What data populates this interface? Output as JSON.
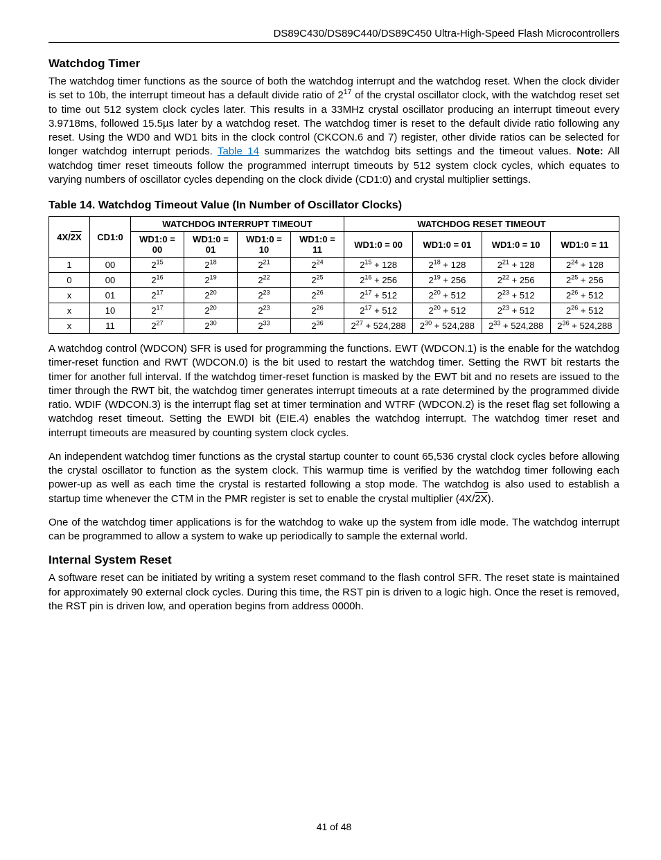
{
  "header": {
    "title": "DS89C430/DS89C440/DS89C450 Ultra-High-Speed Flash Microcontrollers"
  },
  "section1": {
    "title": "Watchdog Timer",
    "para1_pre": "The watchdog timer functions as the source of both the watchdog interrupt and the watchdog reset. When the clock divider is set to 10b, the interrupt timeout has a default divide ratio of 2",
    "para1_sup": "17",
    "para1_mid": " of the crystal oscillator clock, with the watchdog reset set to time out 512 system clock cycles later. This results in a 33MHz crystal oscillator producing an interrupt timeout every 3.9718ms, followed 15.5µs later by a watchdog reset. The watchdog timer is reset to the default divide ratio following any reset. Using the WD0 and WD1 bits in the clock control (CKCON.6 and 7) register, other divide ratios can be selected for longer watchdog interrupt periods. ",
    "para1_link": "Table 14",
    "para1_post1": " summarizes the watchdog bits settings and the timeout values. ",
    "para1_note": "Note:",
    "para1_post2": " All watchdog timer reset timeouts follow the programmed interrupt timeouts by 512 system clock cycles, which equates to varying numbers of oscillator cycles depending on the clock divide (CD1:0) and crystal multiplier settings."
  },
  "table": {
    "caption": "Table 14. Watchdog Timeout Value (In Number of Oscillator Clocks)",
    "header_group_int": "WATCHDOG INTERRUPT TIMEOUT",
    "header_group_rst": "WATCHDOG RESET TIMEOUT",
    "col_4x2x_pre": "4X/",
    "col_4x2x_over": "2X",
    "col_cd": "CD1:0",
    "cols_int": [
      "WD1:0 = 00",
      "WD1:0 = 01",
      "WD1:0 = 10",
      "WD1:0 = 11"
    ],
    "cols_rst": [
      "WD1:0 = 00",
      "WD1:0 = 01",
      "WD1:0 = 10",
      "WD1:0 = 11"
    ],
    "rows": [
      {
        "c0": "1",
        "c1": "00",
        "int_exp": [
          "15",
          "18",
          "21",
          "24"
        ],
        "rst_exp": [
          "15",
          "18",
          "21",
          "24"
        ],
        "rst_add": "128"
      },
      {
        "c0": "0",
        "c1": "00",
        "int_exp": [
          "16",
          "19",
          "22",
          "25"
        ],
        "rst_exp": [
          "16",
          "19",
          "22",
          "25"
        ],
        "rst_add": "256"
      },
      {
        "c0": "x",
        "c1": "01",
        "int_exp": [
          "17",
          "20",
          "23",
          "26"
        ],
        "rst_exp": [
          "17",
          "20",
          "23",
          "26"
        ],
        "rst_add": "512"
      },
      {
        "c0": "x",
        "c1": "10",
        "int_exp": [
          "17",
          "20",
          "23",
          "26"
        ],
        "rst_exp": [
          "17",
          "20",
          "23",
          "26"
        ],
        "rst_add": "512"
      },
      {
        "c0": "x",
        "c1": "11",
        "int_exp": [
          "27",
          "30",
          "33",
          "36"
        ],
        "rst_exp": [
          "27",
          "30",
          "33",
          "36"
        ],
        "rst_add": "524,288"
      }
    ]
  },
  "section1b": {
    "para2": "A watchdog control (WDCON) SFR is used for programming the functions. EWT (WDCON.1) is the enable for the watchdog timer-reset function and RWT (WDCON.0) is the bit used to restart the watchdog timer. Setting the RWT bit restarts the timer for another full interval. If the watchdog timer-reset function is masked by the EWT bit and no resets are issued to the timer through the RWT bit, the watchdog timer generates interrupt timeouts at a rate determined by the programmed divide ratio. WDIF (WDCON.3) is the interrupt flag set at timer termination and WTRF (WDCON.2) is the reset flag set following a watchdog reset timeout. Setting the EWDI bit (EIE.4) enables the watchdog interrupt. The watchdog timer reset and interrupt timeouts are measured by counting system clock cycles.",
    "para3_pre": "An independent watchdog timer functions as the crystal startup counter to count 65,536 crystal clock cycles before allowing the crystal oscillator to function as the system clock. This warmup time is verified by the watchdog timer following each power-up as well as each time the crystal is restarted following a stop mode. The watchdog is also used to establish a startup time whenever the CTM in the PMR register is set to enable the crystal multiplier (4X/",
    "para3_over": "2X",
    "para3_post": ").",
    "para4": "One of the watchdog timer applications is for the watchdog to wake up the system from idle mode. The watchdog interrupt can be programmed to allow a system to wake up periodically to sample the external world."
  },
  "section2": {
    "title": "Internal System Reset",
    "para1": "A software reset can be initiated by writing a system reset command to the flash control SFR. The reset state is maintained for approximately 90 external clock cycles. During this time, the RST pin is driven to a logic high. Once the reset is removed, the RST pin is driven low, and operation begins from address 0000h."
  },
  "footer": {
    "text": "41 of 48"
  }
}
